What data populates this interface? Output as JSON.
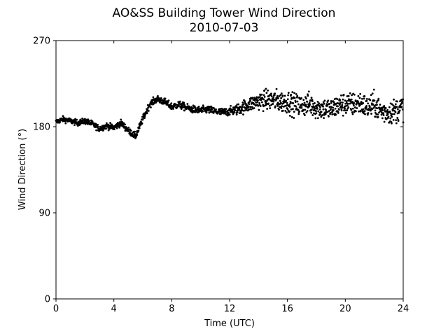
{
  "chart_data": {
    "type": "scatter",
    "title": "AO&SS Building Tower Wind Direction",
    "subtitle": "2010-07-03",
    "xlabel": "Time (UTC)",
    "ylabel": "Wind Direction (°)",
    "xlim": [
      0,
      24
    ],
    "ylim": [
      0,
      270
    ],
    "x_ticks": [
      0,
      4,
      8,
      12,
      16,
      20,
      24
    ],
    "y_ticks": [
      0,
      90,
      180,
      270
    ],
    "x_tick_labels": [
      "0",
      "4",
      "8",
      "12",
      "16",
      "20",
      "24"
    ],
    "y_tick_labels": [
      "0",
      "90",
      "180",
      "270"
    ],
    "grid": false,
    "marker_color": "#000000",
    "trend_knots": [
      [
        0.0,
        185
      ],
      [
        0.5,
        188
      ],
      [
        1.0,
        186
      ],
      [
        1.5,
        184
      ],
      [
        2.0,
        186
      ],
      [
        2.5,
        183
      ],
      [
        3.0,
        178
      ],
      [
        3.5,
        181
      ],
      [
        4.0,
        179
      ],
      [
        4.5,
        184
      ],
      [
        5.0,
        176
      ],
      [
        5.5,
        170
      ],
      [
        6.0,
        188
      ],
      [
        6.5,
        204
      ],
      [
        7.0,
        209
      ],
      [
        7.5,
        206
      ],
      [
        8.0,
        201
      ],
      [
        8.5,
        203
      ],
      [
        9.0,
        200
      ],
      [
        9.5,
        198
      ],
      [
        10.0,
        197
      ],
      [
        10.5,
        198
      ],
      [
        11.0,
        196
      ],
      [
        11.5,
        195
      ],
      [
        12.0,
        196
      ],
      [
        12.5,
        198
      ],
      [
        13.0,
        201
      ],
      [
        13.5,
        204
      ],
      [
        14.0,
        207
      ],
      [
        14.5,
        208
      ],
      [
        15.0,
        208
      ],
      [
        15.5,
        206
      ],
      [
        16.0,
        206
      ],
      [
        16.5,
        203
      ],
      [
        17.0,
        202
      ],
      [
        17.5,
        204
      ],
      [
        18.0,
        200
      ],
      [
        18.5,
        199
      ],
      [
        19.0,
        198
      ],
      [
        19.5,
        202
      ],
      [
        20.0,
        204
      ],
      [
        20.5,
        203
      ],
      [
        21.0,
        205
      ],
      [
        21.5,
        200
      ],
      [
        22.0,
        203
      ],
      [
        22.5,
        196
      ],
      [
        23.0,
        195
      ],
      [
        23.5,
        197
      ],
      [
        24.0,
        201
      ]
    ],
    "scatter_spread": [
      [
        0.0,
        2
      ],
      [
        12.0,
        3
      ],
      [
        13.0,
        5
      ],
      [
        15.0,
        8
      ],
      [
        24.0,
        9
      ]
    ]
  }
}
